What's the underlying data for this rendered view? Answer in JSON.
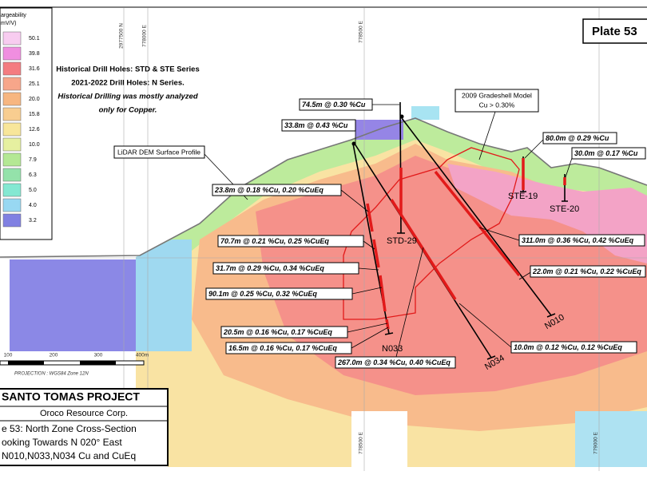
{
  "plate": "Plate 53",
  "legend": {
    "title": [
      "argeability",
      "mV/V)"
    ],
    "items": [
      {
        "label": "50.1",
        "color": "#f8ccf0"
      },
      {
        "label": "39.8",
        "color": "#f08ee0"
      },
      {
        "label": "31.6",
        "color": "#f47c80"
      },
      {
        "label": "25.1",
        "color": "#f7a68a"
      },
      {
        "label": "20.0",
        "color": "#f7b680"
      },
      {
        "label": "15.8",
        "color": "#f8cd90"
      },
      {
        "label": "12.6",
        "color": "#f8e69a"
      },
      {
        "label": "10.0",
        "color": "#e6f0a0"
      },
      {
        "label": "7.9",
        "color": "#b4e894"
      },
      {
        "label": "6.3",
        "color": "#94e2aa"
      },
      {
        "label": "5.0",
        "color": "#84e8d2"
      },
      {
        "label": "4.0",
        "color": "#98d8f2"
      },
      {
        "label": "3.2",
        "color": "#8080e2"
      }
    ]
  },
  "notes": [
    "Historical Drill Holes: STD & STE Series",
    "2021-2022 Drill Holes: N Series.",
    "Historical Drilling was mostly analyzed",
    "only for Copper."
  ],
  "annotations": {
    "gradeshell": [
      "2009 Gradeshell Model",
      "Cu > 0.30%"
    ],
    "lidar": "LiDAR DEM Surface Profile"
  },
  "grid_labels": [
    "2977500 N",
    "778000 E",
    "778500 E",
    "778500 E",
    "779000 E"
  ],
  "intercepts": [
    "74.5m @ 0.30 %Cu",
    "33.8m @ 0.43 %Cu",
    "80.0m @ 0.29 %Cu",
    "30.0m @ 0.17 %Cu",
    "23.8m @ 0.18 %Cu, 0.20 %CuEq",
    "70.7m @ 0.21 %Cu, 0.25 %CuEq",
    "31.7m @ 0.29 %Cu, 0.34 %CuEq",
    "90.1m @ 0.25 %Cu, 0.32 %CuEq",
    "20.5m @ 0.16 %Cu, 0.17 %CuEq",
    "16.5m @ 0.16 %Cu, 0.17 %CuEq",
    "267.0m @ 0.34 %Cu, 0.40 %CuEq",
    "311.0m @ 0.36 %Cu, 0.42 %CuEq",
    "22.0m @ 0.21 %Cu, 0.22 %CuEq",
    "10.0m @ 0.12 %Cu, 0.12 %CuEq"
  ],
  "holes": [
    "N033",
    "N034",
    "N010",
    "STD-29",
    "STE-19",
    "STE-20"
  ],
  "scale": {
    "labels": [
      "100",
      "200",
      "300",
      "400m"
    ],
    "projection": "PROJECTION : WGS84 Zone 12N"
  },
  "title_block": {
    "project": "SANTO TOMAS PROJECT",
    "company": "Oroco Resource Corp.",
    "lines": [
      "e 53: North Zone Cross-Section",
      "ooking Towards N 020° East",
      "N010,N033,N034 Cu and CuEq"
    ]
  }
}
